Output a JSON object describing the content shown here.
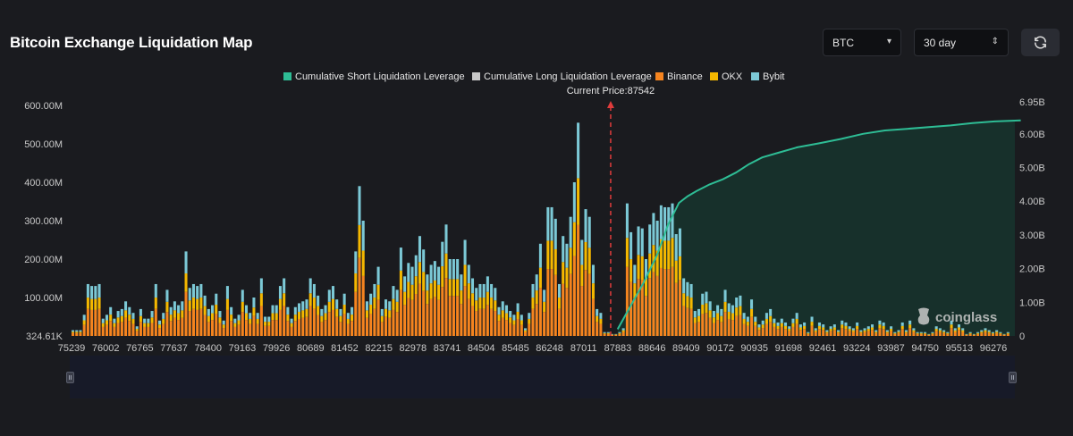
{
  "header": {
    "title": "Bitcoin Exchange Liquidation Map",
    "symbol": "BTC",
    "period": "30 day",
    "refresh_icon": "refresh-icon"
  },
  "watermark": "coinglass",
  "colors": {
    "short_cum": "#2ebd95",
    "long_cum": "#c9c9c9",
    "binance": "#f5841f",
    "okx": "#f5b800",
    "bybit": "#7cc9d6",
    "price_line": "#e03c3c"
  },
  "chart_data": {
    "type": "bar",
    "title": "",
    "current_price_label": "Current Price:87542",
    "current_price": 87542,
    "x_ticks": [
      "75239",
      "76002",
      "76765",
      "77637",
      "78400",
      "79163",
      "79926",
      "80689",
      "81452",
      "82215",
      "82978",
      "83741",
      "84504",
      "85485",
      "86248",
      "87011",
      "87883",
      "88646",
      "89409",
      "90172",
      "90935",
      "91698",
      "92461",
      "93224",
      "93987",
      "94750",
      "95513",
      "96276"
    ],
    "y_left_ticks": [
      "324.61K",
      "100.00M",
      "200.00M",
      "300.00M",
      "400.00M",
      "500.00M",
      "600.00M"
    ],
    "y_right_ticks": [
      "0",
      "1.00B",
      "2.00B",
      "3.00B",
      "4.00B",
      "5.00B",
      "6.00B",
      "6.95B"
    ],
    "y_left_max": 600,
    "y_right_max": 6.95,
    "legend": [
      {
        "name": "Cumulative Short Liquidation Leverage",
        "color": "#2ebd95"
      },
      {
        "name": "Cumulative Long Liquidation Leverage",
        "color": "#c9c9c9"
      },
      {
        "name": "Binance",
        "color": "#f5841f"
      },
      {
        "name": "OKX",
        "color": "#f5b800"
      },
      {
        "name": "Bybit",
        "color": "#7cc9d6"
      }
    ],
    "bar_totals": [
      15,
      15,
      15,
      55,
      135,
      130,
      130,
      135,
      45,
      55,
      75,
      45,
      65,
      70,
      90,
      75,
      60,
      25,
      70,
      45,
      45,
      65,
      135,
      40,
      60,
      120,
      75,
      90,
      80,
      90,
      220,
      125,
      135,
      130,
      135,
      105,
      70,
      80,
      110,
      65,
      40,
      130,
      75,
      45,
      55,
      120,
      80,
      60,
      100,
      60,
      150,
      50,
      50,
      80,
      80,
      130,
      150,
      75,
      45,
      75,
      85,
      90,
      95,
      150,
      135,
      105,
      70,
      80,
      120,
      130,
      95,
      70,
      110,
      60,
      75,
      220,
      390,
      300,
      90,
      110,
      135,
      180,
      70,
      95,
      90,
      130,
      120,
      230,
      155,
      190,
      180,
      210,
      260,
      225,
      160,
      185,
      195,
      180,
      245,
      290,
      200,
      200,
      200,
      160,
      250,
      185,
      150,
      125,
      135,
      135,
      155,
      135,
      125,
      75,
      90,
      80,
      65,
      55,
      85,
      55,
      20,
      60,
      135,
      160,
      240,
      120,
      335,
      335,
      305,
      135,
      260,
      240,
      310,
      400,
      555,
      250,
      330,
      310,
      185,
      70,
      60,
      10,
      10,
      5,
      5,
      10,
      20,
      345,
      270,
      185,
      285,
      280,
      200,
      290,
      320,
      300,
      340,
      335,
      335,
      345,
      265,
      280,
      150,
      140,
      135,
      65,
      70,
      110,
      115,
      90,
      65,
      80,
      70,
      120,
      85,
      80,
      100,
      105,
      60,
      50,
      95,
      50,
      30,
      40,
      60,
      70,
      45,
      35,
      45,
      35,
      25,
      45,
      60,
      30,
      35,
      10,
      50,
      20,
      35,
      30,
      15,
      25,
      30,
      15,
      40,
      35,
      25,
      20,
      35,
      15,
      20,
      25,
      30,
      15,
      40,
      35,
      15,
      25,
      10,
      15,
      35,
      15,
      40,
      20,
      10,
      10,
      10,
      5,
      10,
      25,
      20,
      15,
      10,
      40,
      20,
      30,
      20,
      5,
      10,
      5,
      10,
      15,
      20,
      15,
      10,
      15,
      10,
      5,
      10
    ],
    "short_cumulative": [
      {
        "x": 87700,
        "y": 0.2
      },
      {
        "x": 88000,
        "y": 0.9
      },
      {
        "x": 88300,
        "y": 1.6
      },
      {
        "x": 88600,
        "y": 2.4
      },
      {
        "x": 88850,
        "y": 3.3
      },
      {
        "x": 89100,
        "y": 3.95
      },
      {
        "x": 89300,
        "y": 4.15
      },
      {
        "x": 89500,
        "y": 4.3
      },
      {
        "x": 89800,
        "y": 4.5
      },
      {
        "x": 90100,
        "y": 4.65
      },
      {
        "x": 90400,
        "y": 4.85
      },
      {
        "x": 90700,
        "y": 5.1
      },
      {
        "x": 91000,
        "y": 5.3
      },
      {
        "x": 91400,
        "y": 5.45
      },
      {
        "x": 91800,
        "y": 5.6
      },
      {
        "x": 92300,
        "y": 5.72
      },
      {
        "x": 92800,
        "y": 5.85
      },
      {
        "x": 93300,
        "y": 6.0
      },
      {
        "x": 93800,
        "y": 6.1
      },
      {
        "x": 94300,
        "y": 6.15
      },
      {
        "x": 94800,
        "y": 6.2
      },
      {
        "x": 95300,
        "y": 6.25
      },
      {
        "x": 95800,
        "y": 6.32
      },
      {
        "x": 96300,
        "y": 6.37
      },
      {
        "x": 96900,
        "y": 6.4
      }
    ],
    "legend_position": "top-center"
  }
}
